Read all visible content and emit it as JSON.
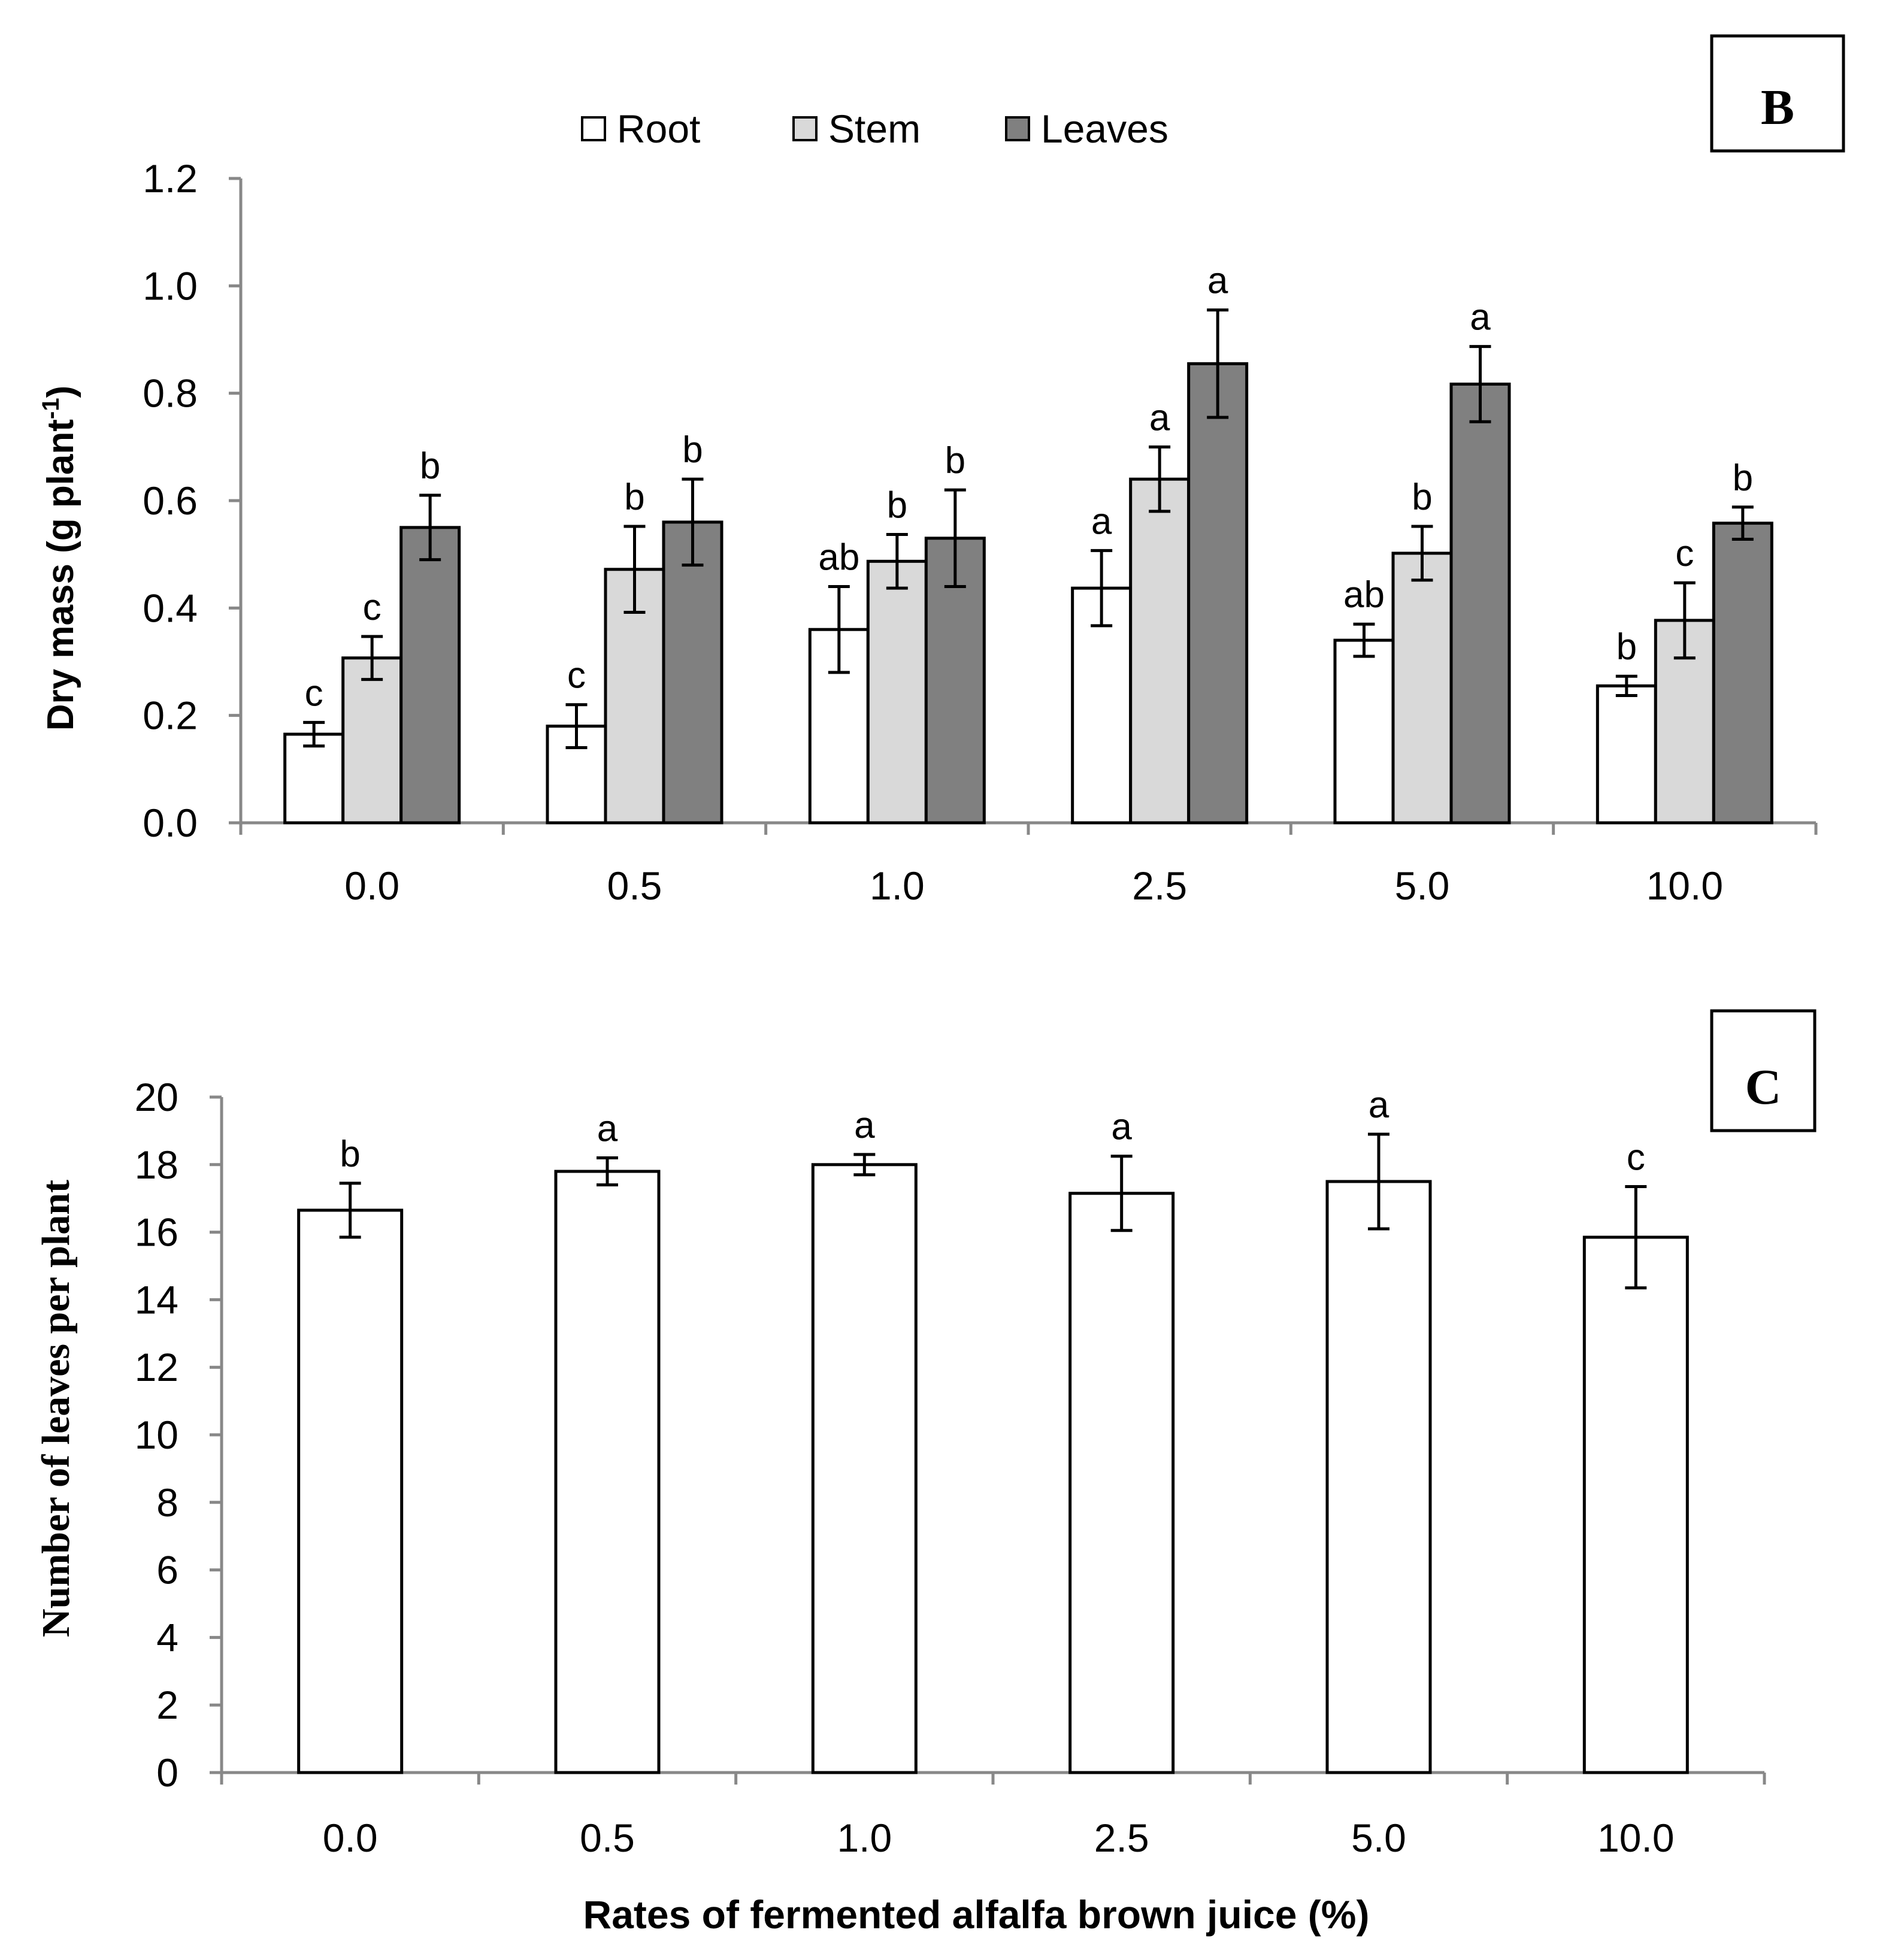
{
  "chart_data": [
    {
      "type": "bar",
      "panel_label": "B",
      "categories": [
        "0.0",
        "0.5",
        "1.0",
        "2.5",
        "5.0",
        "10.0"
      ],
      "ylabel": "Dry mass (g plant",
      "ylabel_sup": "-1",
      "ylabel_end": ")",
      "xlabel": "",
      "ylim": [
        0,
        1.2
      ],
      "yticks": [
        "0.0",
        "0.2",
        "0.4",
        "0.6",
        "0.8",
        "1.0",
        "1.2"
      ],
      "legend_position": "top",
      "grid": false,
      "series": [
        {
          "name": "Root",
          "color": "#ffffff",
          "values": [
            0.165,
            0.18,
            0.36,
            0.437,
            0.34,
            0.255
          ],
          "errors": [
            0.022,
            0.04,
            0.08,
            0.07,
            0.03,
            0.018
          ],
          "letters": [
            "c",
            "c",
            "ab",
            "a",
            "ab",
            "b"
          ]
        },
        {
          "name": "Stem",
          "color": "#d9d9d9",
          "values": [
            0.307,
            0.472,
            0.487,
            0.64,
            0.502,
            0.377
          ],
          "errors": [
            0.04,
            0.08,
            0.05,
            0.06,
            0.05,
            0.07
          ],
          "letters": [
            "c",
            "b",
            "b",
            "a",
            "b",
            "c"
          ]
        },
        {
          "name": "Leaves",
          "color": "#808080",
          "values": [
            0.55,
            0.56,
            0.53,
            0.855,
            0.817,
            0.558
          ],
          "errors": [
            0.06,
            0.08,
            0.09,
            0.1,
            0.07,
            0.03
          ],
          "letters": [
            "b",
            "b",
            "b",
            "a",
            "a",
            "b"
          ]
        }
      ]
    },
    {
      "type": "bar",
      "panel_label": "C",
      "categories": [
        "0.0",
        "0.5",
        "1.0",
        "2.5",
        "5.0",
        "10.0"
      ],
      "ylabel": "Number of leaves per plant",
      "xlabel": "Rates of fermented alfalfa brown juice (%)",
      "ylim": [
        0,
        20
      ],
      "yticks": [
        "0",
        "2",
        "4",
        "6",
        "8",
        "10",
        "12",
        "14",
        "16",
        "18",
        "20"
      ],
      "grid": false,
      "series": [
        {
          "color": "#ffffff",
          "values": [
            16.65,
            17.8,
            18.0,
            17.15,
            17.5,
            15.85
          ],
          "errors": [
            0.8,
            0.4,
            0.3,
            1.1,
            1.4,
            1.5
          ],
          "letters": [
            "b",
            "a",
            "a",
            "a",
            "a",
            "c"
          ]
        }
      ]
    }
  ]
}
